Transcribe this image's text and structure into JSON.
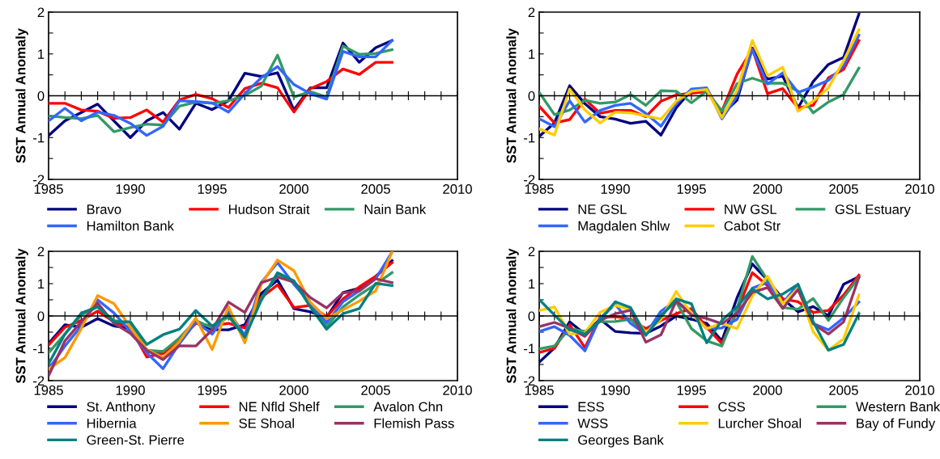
{
  "chart_data": [
    {
      "type": "line",
      "ylabel": "SST Annual Anomaly",
      "x": [
        1985,
        1986,
        1987,
        1988,
        1989,
        1990,
        1991,
        1992,
        1993,
        1994,
        1995,
        1996,
        1997,
        1998,
        1999,
        2000,
        2001,
        2002,
        2003,
        2004,
        2005,
        2006
      ],
      "xlim": [
        1985,
        2010
      ],
      "xticks": [
        1985,
        {
          "value": 1986,
          "label": null
        },
        {
          "value": 1987,
          "label": null
        },
        {
          "value": 1988,
          "label": null
        },
        {
          "value": 1989,
          "label": null
        },
        1990,
        {
          "value": 1991,
          "label": null
        },
        {
          "value": 1992,
          "label": null
        },
        {
          "value": 1993,
          "label": null
        },
        {
          "value": 1994,
          "label": null
        },
        1995,
        {
          "value": 1996,
          "label": null
        },
        {
          "value": 1997,
          "label": null
        },
        {
          "value": 1998,
          "label": null
        },
        {
          "value": 1999,
          "label": null
        },
        2000,
        {
          "value": 2001,
          "label": null
        },
        {
          "value": 2002,
          "label": null
        },
        {
          "value": 2003,
          "label": null
        },
        {
          "value": 2004,
          "label": null
        },
        2005,
        {
          "value": 2006,
          "label": null
        },
        {
          "value": 2007,
          "label": null
        },
        {
          "value": 2008,
          "label": null
        },
        {
          "value": 2009,
          "label": null
        },
        2010
      ],
      "ylim": [
        -2,
        2
      ],
      "yticks": [
        -2,
        {
          "value": -1.5,
          "label": null
        },
        -1,
        {
          "value": -0.5,
          "label": null
        },
        0,
        {
          "value": 0.5,
          "label": null
        },
        1,
        {
          "value": 1.5,
          "label": null
        },
        2
      ],
      "grid": false,
      "legend": "bottom",
      "marker": "none",
      "line_style": "solid",
      "ref_lines": [
        {
          "axis": "y",
          "value": 0,
          "color": "#000000"
        }
      ],
      "series": [
        {
          "name": "Bravo",
          "color": "#000080",
          "values": [
            -0.95,
            -0.6,
            -0.4,
            -0.2,
            -0.6,
            -1.0,
            -0.6,
            -0.4,
            -0.8,
            -0.18,
            -0.33,
            -0.12,
            0.54,
            0.46,
            0.55,
            -0.34,
            0.19,
            0.19,
            1.26,
            0.8,
            1.15,
            1.32
          ]
        },
        {
          "name": "Hudson Strait",
          "color": "#ff0000",
          "values": [
            -0.18,
            -0.18,
            -0.34,
            -0.37,
            -0.54,
            -0.52,
            -0.34,
            -0.63,
            -0.1,
            0.03,
            -0.07,
            -0.28,
            0.17,
            0.3,
            0.19,
            -0.39,
            0.17,
            0.34,
            0.64,
            0.51,
            0.8,
            0.8
          ]
        },
        {
          "name": "Nain Bank",
          "color": "#339966",
          "values": [
            -0.48,
            -0.52,
            -0.55,
            -0.47,
            -0.86,
            -0.76,
            -0.68,
            -0.7,
            -0.25,
            -0.15,
            -0.18,
            -0.12,
            0.01,
            0.23,
            0.97,
            -0.03,
            0.1,
            -0.03,
            1.19,
            0.99,
            1.01,
            1.1
          ]
        },
        {
          "name": "Hamilton Bank",
          "color": "#3366ff",
          "values": [
            -0.6,
            -0.3,
            -0.6,
            -0.39,
            -0.47,
            -0.66,
            -0.95,
            -0.73,
            -0.12,
            -0.14,
            -0.17,
            -0.39,
            0.05,
            0.43,
            0.7,
            0.27,
            0.05,
            -0.08,
            1.06,
            0.93,
            0.93,
            1.32
          ]
        }
      ]
    },
    {
      "type": "line",
      "ylabel": "SST Annual Anomaly",
      "x": [
        1985,
        1986,
        1987,
        1988,
        1989,
        1990,
        1991,
        1992,
        1993,
        1994,
        1995,
        1996,
        1997,
        1998,
        1999,
        2000,
        2001,
        2002,
        2003,
        2004,
        2005,
        2006
      ],
      "xlim": [
        1985,
        2010
      ],
      "xticks": [
        1985,
        {
          "value": 1986,
          "label": null
        },
        {
          "value": 1987,
          "label": null
        },
        {
          "value": 1988,
          "label": null
        },
        {
          "value": 1989,
          "label": null
        },
        1990,
        {
          "value": 1991,
          "label": null
        },
        {
          "value": 1992,
          "label": null
        },
        {
          "value": 1993,
          "label": null
        },
        {
          "value": 1994,
          "label": null
        },
        1995,
        {
          "value": 1996,
          "label": null
        },
        {
          "value": 1997,
          "label": null
        },
        {
          "value": 1998,
          "label": null
        },
        {
          "value": 1999,
          "label": null
        },
        2000,
        {
          "value": 2001,
          "label": null
        },
        {
          "value": 2002,
          "label": null
        },
        {
          "value": 2003,
          "label": null
        },
        {
          "value": 2004,
          "label": null
        },
        2005,
        {
          "value": 2006,
          "label": null
        },
        {
          "value": 2007,
          "label": null
        },
        {
          "value": 2008,
          "label": null
        },
        {
          "value": 2009,
          "label": null
        },
        2010
      ],
      "ylim": [
        -2,
        2
      ],
      "yticks": [
        -2,
        {
          "value": -1.5,
          "label": null
        },
        -1,
        {
          "value": -0.5,
          "label": null
        },
        0,
        {
          "value": 0.5,
          "label": null
        },
        1,
        {
          "value": 1.5,
          "label": null
        },
        2
      ],
      "grid": false,
      "legend": "bottom",
      "marker": "none",
      "line_style": "solid",
      "ref_lines": [
        {
          "axis": "y",
          "value": 0,
          "color": "#000000"
        }
      ],
      "series": [
        {
          "name": "NE GSL",
          "color": "#000080",
          "values": [
            -0.97,
            -0.65,
            0.24,
            -0.19,
            -0.5,
            -0.56,
            -0.66,
            -0.61,
            -0.94,
            -0.29,
            0.13,
            0.16,
            -0.45,
            -0.1,
            1.14,
            0.4,
            0.47,
            -0.29,
            0.34,
            0.75,
            0.92,
            1.95
          ]
        },
        {
          "name": "NW GSL",
          "color": "#ff0000",
          "values": [
            -0.25,
            -0.65,
            -0.57,
            -0.08,
            -0.42,
            -0.35,
            -0.35,
            -0.5,
            -0.13,
            0.02,
            0.06,
            0.1,
            -0.37,
            0.52,
            1.12,
            0.05,
            0.17,
            -0.29,
            -0.23,
            0.43,
            0.63,
            1.32
          ]
        },
        {
          "name": "GSL Estuary",
          "color": "#339966",
          "values": [
            0.08,
            -0.45,
            -0.34,
            -0.11,
            -0.18,
            -0.15,
            0.03,
            -0.23,
            0.12,
            0.11,
            -0.17,
            0.11,
            -0.37,
            0.29,
            0.42,
            0.3,
            0.3,
            0.11,
            -0.41,
            -0.15,
            0.03,
            0.66
          ]
        },
        {
          "name": "Magdalen Shlw",
          "color": "#3366ff",
          "values": [
            -0.55,
            -0.74,
            -0.12,
            -0.63,
            -0.35,
            -0.23,
            -0.18,
            -0.42,
            -0.73,
            -0.19,
            0.16,
            0.19,
            -0.55,
            -0.01,
            1.1,
            0.28,
            0.55,
            0.08,
            0.21,
            0.37,
            0.71,
            1.45
          ]
        },
        {
          "name": "Cabot Str",
          "color": "#ffcc00",
          "values": [
            -0.79,
            -0.94,
            0.16,
            -0.34,
            -0.65,
            -0.39,
            -0.41,
            -0.48,
            -0.56,
            -0.13,
            0.11,
            0.15,
            -0.52,
            0.13,
            1.32,
            0.48,
            0.68,
            -0.37,
            -0.13,
            0.19,
            0.84,
            1.58
          ]
        }
      ]
    },
    {
      "type": "line",
      "ylabel": "SST Annual Anomaly",
      "x": [
        1985,
        1986,
        1987,
        1988,
        1989,
        1990,
        1991,
        1992,
        1993,
        1994,
        1995,
        1996,
        1997,
        1998,
        1999,
        2000,
        2001,
        2002,
        2003,
        2004,
        2005,
        2006
      ],
      "xlim": [
        1985,
        2010
      ],
      "xticks": [
        1985,
        {
          "value": 1986,
          "label": null
        },
        {
          "value": 1987,
          "label": null
        },
        {
          "value": 1988,
          "label": null
        },
        {
          "value": 1989,
          "label": null
        },
        1990,
        {
          "value": 1991,
          "label": null
        },
        {
          "value": 1992,
          "label": null
        },
        {
          "value": 1993,
          "label": null
        },
        {
          "value": 1994,
          "label": null
        },
        1995,
        {
          "value": 1996,
          "label": null
        },
        {
          "value": 1997,
          "label": null
        },
        {
          "value": 1998,
          "label": null
        },
        {
          "value": 1999,
          "label": null
        },
        2000,
        {
          "value": 2001,
          "label": null
        },
        {
          "value": 2002,
          "label": null
        },
        {
          "value": 2003,
          "label": null
        },
        {
          "value": 2004,
          "label": null
        },
        2005,
        {
          "value": 2006,
          "label": null
        },
        {
          "value": 2007,
          "label": null
        },
        {
          "value": 2008,
          "label": null
        },
        {
          "value": 2009,
          "label": null
        },
        2010
      ],
      "ylim": [
        -2,
        2
      ],
      "yticks": [
        -2,
        {
          "value": -1.5,
          "label": null
        },
        -1,
        {
          "value": -0.5,
          "label": null
        },
        0,
        {
          "value": 0.5,
          "label": null
        },
        1,
        {
          "value": 1.5,
          "label": null
        },
        2
      ],
      "grid": false,
      "legend": "bottom",
      "marker": "none",
      "line_style": "solid",
      "ref_lines": [
        {
          "axis": "y",
          "value": 0,
          "color": "#000000"
        }
      ],
      "series": [
        {
          "name": "St. Anthony",
          "color": "#000080",
          "values": [
            -0.85,
            -0.27,
            -0.35,
            -0.08,
            -0.31,
            -0.39,
            -1.1,
            -1.1,
            -0.85,
            -0.18,
            -0.43,
            -0.43,
            -0.27,
            0.69,
            1.11,
            0.23,
            0.13,
            -0.04,
            0.72,
            0.86,
            1.21,
            1.71
          ]
        },
        {
          "name": "NE Nfld Shelf",
          "color": "#ff0000",
          "values": [
            -0.9,
            -0.35,
            -0.14,
            0.15,
            -0.18,
            -0.37,
            -1.27,
            -1.16,
            -0.73,
            -0.23,
            -0.31,
            -0.23,
            -0.37,
            0.57,
            0.96,
            0.26,
            0.33,
            -0.02,
            0.53,
            0.9,
            1.23,
            1.65
          ]
        },
        {
          "name": "Avalon Chn",
          "color": "#339966",
          "values": [
            -1.14,
            -0.56,
            0.03,
            0.28,
            -0.14,
            -0.23,
            -1.06,
            -1.1,
            -0.68,
            -0.14,
            -0.37,
            -0.02,
            -0.64,
            0.53,
            1.28,
            1.03,
            0.4,
            -0.33,
            0.28,
            0.65,
            0.98,
            1.34
          ]
        },
        {
          "name": "Hibernia",
          "color": "#3366ff",
          "values": [
            -1.64,
            -0.93,
            -0.31,
            0.5,
            0.09,
            -0.48,
            -1.14,
            -1.63,
            -0.85,
            -0.18,
            -0.56,
            0.13,
            -0.6,
            1.03,
            1.65,
            0.98,
            0.4,
            -0.21,
            0.44,
            0.78,
            1.15,
            1.98
          ]
        },
        {
          "name": "SE Shoal",
          "color": "#ff9900",
          "values": [
            -1.64,
            -1.29,
            -0.39,
            0.63,
            0.38,
            -0.35,
            -1.04,
            -1.29,
            -0.79,
            -0.06,
            -1.04,
            0.29,
            -0.83,
            0.98,
            1.73,
            1.4,
            0.43,
            -0.08,
            0.19,
            0.46,
            0.78,
            1.98
          ]
        },
        {
          "name": "Flemish Pass",
          "color": "#993366",
          "values": [
            -1.85,
            -0.77,
            -0.18,
            0.4,
            -0.23,
            -0.54,
            -1.06,
            -1.35,
            -0.92,
            -0.93,
            -0.43,
            0.43,
            0.11,
            1.03,
            1.2,
            1.05,
            0.57,
            0.25,
            0.71,
            0.78,
            1.15,
            1.03
          ]
        },
        {
          "name": "Green-St. Pierre",
          "color": "#008080",
          "values": [
            -1.48,
            -0.56,
            0.09,
            0.28,
            -0.18,
            -0.18,
            -0.88,
            -0.58,
            -0.41,
            0.17,
            -0.31,
            0.03,
            -0.66,
            0.48,
            1.34,
            1.09,
            0.28,
            -0.41,
            0.07,
            0.23,
            1.01,
            0.94
          ]
        }
      ]
    },
    {
      "type": "line",
      "ylabel": "SST Annual Anomaly",
      "x": [
        1985,
        1986,
        1987,
        1988,
        1989,
        1990,
        1991,
        1992,
        1993,
        1994,
        1995,
        1996,
        1997,
        1998,
        1999,
        2000,
        2001,
        2002,
        2003,
        2004,
        2005,
        2006
      ],
      "xlim": [
        1985,
        2010
      ],
      "xticks": [
        1985,
        {
          "value": 1986,
          "label": null
        },
        {
          "value": 1987,
          "label": null
        },
        {
          "value": 1988,
          "label": null
        },
        {
          "value": 1989,
          "label": null
        },
        1990,
        {
          "value": 1991,
          "label": null
        },
        {
          "value": 1992,
          "label": null
        },
        {
          "value": 1993,
          "label": null
        },
        {
          "value": 1994,
          "label": null
        },
        1995,
        {
          "value": 1996,
          "label": null
        },
        {
          "value": 1997,
          "label": null
        },
        {
          "value": 1998,
          "label": null
        },
        {
          "value": 1999,
          "label": null
        },
        2000,
        {
          "value": 2001,
          "label": null
        },
        {
          "value": 2002,
          "label": null
        },
        {
          "value": 2003,
          "label": null
        },
        {
          "value": 2004,
          "label": null
        },
        2005,
        {
          "value": 2006,
          "label": null
        },
        {
          "value": 2007,
          "label": null
        },
        {
          "value": 2008,
          "label": null
        },
        {
          "value": 2009,
          "label": null
        },
        2010
      ],
      "ylim": [
        -2,
        2
      ],
      "yticks": [
        -2,
        {
          "value": -1.5,
          "label": null
        },
        -1,
        {
          "value": -0.5,
          "label": null
        },
        0,
        {
          "value": 0.5,
          "label": null
        },
        1,
        {
          "value": 1.5,
          "label": null
        },
        2
      ],
      "grid": false,
      "legend": "bottom",
      "marker": "none",
      "line_style": "solid",
      "ref_lines": [
        {
          "axis": "y",
          "value": 0,
          "color": "#000000"
        }
      ],
      "series": [
        {
          "name": "ESS",
          "color": "#000080",
          "values": [
            -1.43,
            -0.99,
            -0.18,
            -0.56,
            -0.1,
            -0.48,
            -0.52,
            -0.54,
            -0.31,
            0.0,
            -0.1,
            -0.23,
            -0.77,
            0.57,
            1.61,
            1.11,
            0.53,
            0.13,
            0.29,
            0.0,
            0.98,
            1.21
          ]
        },
        {
          "name": "CSS",
          "color": "#ff0000",
          "values": [
            -1.13,
            -1.0,
            -0.27,
            -0.98,
            -0.04,
            -0.02,
            -0.1,
            -0.39,
            -0.14,
            0.07,
            0.23,
            -0.35,
            -0.85,
            0.15,
            1.34,
            0.94,
            0.53,
            0.44,
            0.11,
            0.17,
            0.65,
            1.26
          ]
        },
        {
          "name": "Western Bank",
          "color": "#339966",
          "values": [
            -1.02,
            -0.93,
            -0.39,
            -0.48,
            -0.18,
            -0.17,
            -0.1,
            -0.56,
            0.03,
            0.44,
            -0.39,
            -0.77,
            -0.93,
            0.23,
            1.84,
            1.11,
            0.26,
            0.21,
            0.54,
            -0.14,
            0.57,
            1.19
          ]
        },
        {
          "name": "WSS",
          "color": "#3366ff",
          "values": [
            -0.48,
            -0.33,
            -0.6,
            -1.08,
            -0.06,
            0.36,
            -0.23,
            -0.56,
            0.15,
            0.48,
            0.07,
            -0.39,
            -0.37,
            -0.1,
            0.86,
            1.04,
            0.4,
            0.98,
            -0.23,
            -0.43,
            -0.06,
            0.43
          ]
        },
        {
          "name": "Lurcher Shoal",
          "color": "#ffcc00",
          "values": [
            0.17,
            0.28,
            -0.56,
            -0.52,
            0.11,
            0.33,
            0.19,
            -0.52,
            -0.1,
            0.76,
            0.07,
            -0.39,
            -0.23,
            -0.39,
            0.61,
            1.23,
            0.38,
            0.86,
            -0.49,
            -1.06,
            -0.71,
            0.65
          ]
        },
        {
          "name": "Bay of Fundy",
          "color": "#993366",
          "values": [
            -0.33,
            -0.2,
            -0.38,
            -0.63,
            -0.14,
            0.07,
            0.18,
            -0.81,
            -0.58,
            0.47,
            0.03,
            -0.08,
            -0.24,
            0.09,
            0.73,
            0.88,
            0.23,
            0.82,
            -0.24,
            -0.56,
            -0.18,
            1.19
          ]
        },
        {
          "name": "Georges Bank",
          "color": "#008080",
          "values": [
            0.51,
            0.03,
            -0.43,
            -0.56,
            -0.14,
            0.44,
            0.26,
            -0.6,
            -0.02,
            0.53,
            0.38,
            -0.83,
            -0.14,
            0.28,
            0.84,
            0.53,
            0.68,
            0.98,
            -0.18,
            -1.06,
            -0.88,
            0.07
          ]
        }
      ]
    }
  ]
}
